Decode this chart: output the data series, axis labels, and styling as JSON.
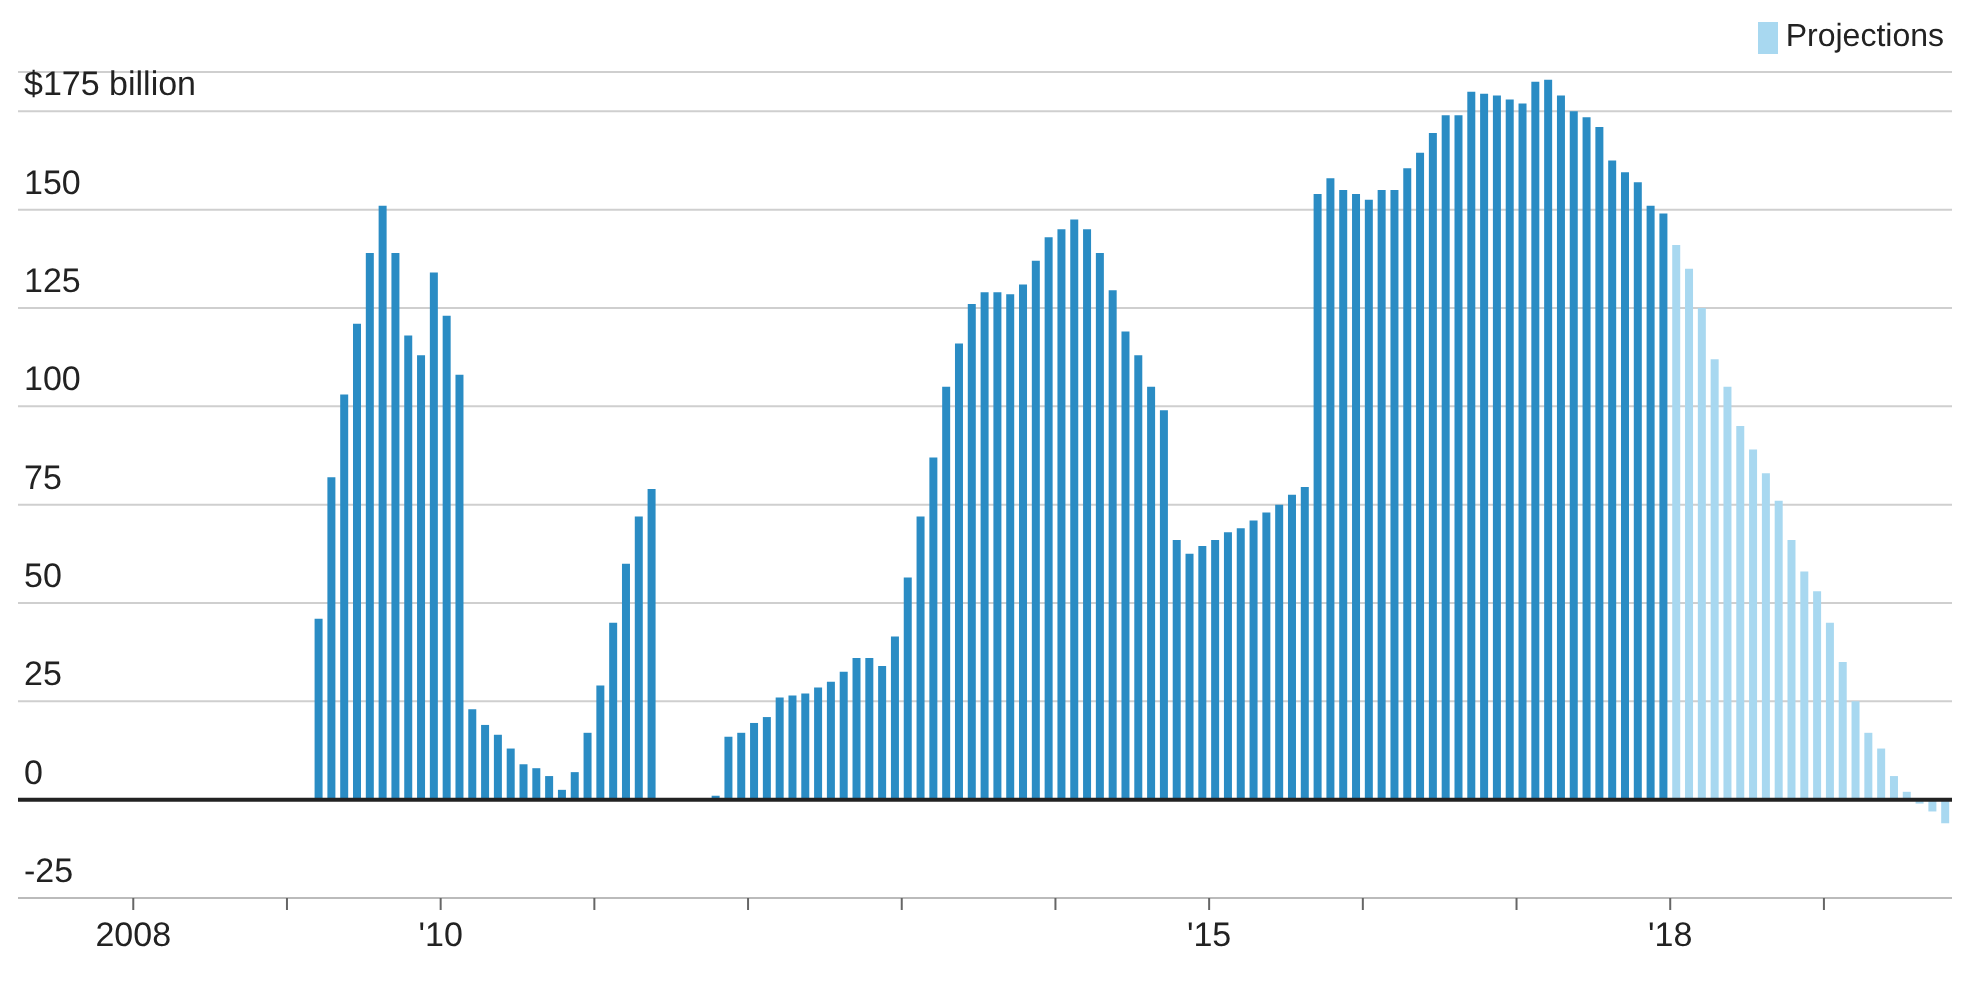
{
  "chart_data": {
    "type": "bar",
    "series": [
      {
        "color": "#2a8cc4",
        "x": [
          "2009-03",
          "2009-04",
          "2009-05",
          "2009-06",
          "2009-07",
          "2009-08",
          "2009-09",
          "2009-10",
          "2009-11",
          "2009-12",
          "2010-01",
          "2010-02",
          "2010-03",
          "2010-04",
          "2010-05",
          "2010-06",
          "2010-07",
          "2010-08",
          "2010-09",
          "2010-10",
          "2010-11",
          "2010-12",
          "2011-01",
          "2011-02",
          "2011-03",
          "2011-04",
          "2011-05",
          "2011-06",
          "2011-07",
          "2011-08",
          "2011-09",
          "2011-10",
          "2011-11",
          "2011-12",
          "2012-01",
          "2012-02",
          "2012-03",
          "2012-04",
          "2012-05",
          "2012-06",
          "2012-07",
          "2012-08",
          "2012-09",
          "2012-10",
          "2012-11",
          "2012-12",
          "2013-01",
          "2013-02",
          "2013-03",
          "2013-04",
          "2013-05",
          "2013-06",
          "2013-07",
          "2013-08",
          "2013-09",
          "2013-10",
          "2013-11",
          "2013-12",
          "2014-01",
          "2014-02",
          "2014-03",
          "2014-04",
          "2014-05",
          "2014-06",
          "2014-07",
          "2014-08",
          "2014-09",
          "2014-10",
          "2014-11",
          "2014-12",
          "2015-01",
          "2015-02",
          "2015-03",
          "2015-04",
          "2015-05",
          "2015-06",
          "2015-07",
          "2015-08",
          "2015-09",
          "2015-10",
          "2015-11",
          "2015-12",
          "2016-01",
          "2016-02",
          "2016-03",
          "2016-04",
          "2016-05",
          "2016-06",
          "2016-07",
          "2016-08",
          "2016-09",
          "2016-10",
          "2016-11",
          "2016-12",
          "2017-01",
          "2017-02",
          "2017-03",
          "2017-04",
          "2017-05",
          "2017-06",
          "2017-07",
          "2017-08",
          "2017-09",
          "2017-10",
          "2017-11",
          "2017-12"
        ],
        "values": [
          46,
          82,
          103,
          121,
          139,
          151,
          139,
          118,
          113,
          134,
          123,
          108,
          23,
          19,
          16.5,
          13,
          9,
          8,
          6,
          2.5,
          7,
          17,
          29,
          45,
          60,
          72,
          79,
          null,
          null,
          null,
          null,
          1,
          16,
          17,
          19.5,
          21,
          26,
          26.5,
          27,
          28.5,
          30,
          32.5,
          36,
          36,
          34,
          41.5,
          56.5,
          72,
          87,
          105,
          116,
          126,
          129,
          129,
          128.5,
          131,
          137,
          143,
          145,
          147.5,
          145,
          139,
          129.5,
          119,
          113,
          105,
          99,
          66,
          62.5,
          64.5,
          66,
          68,
          69,
          71,
          73,
          75,
          77.5,
          79.5,
          154,
          158,
          155,
          154,
          152.5,
          155,
          155,
          160.5,
          164.5,
          169.5,
          174,
          174,
          180,
          179.5,
          179,
          178,
          177,
          182.5,
          183,
          179,
          175,
          173.5,
          171,
          162.5,
          159.5,
          157,
          151,
          149
        ]
      },
      {
        "name": "Projections",
        "color": "#a8d8f0",
        "x": [
          "2018-01",
          "2018-02",
          "2018-03",
          "2018-04",
          "2018-05",
          "2018-06",
          "2018-07",
          "2018-08",
          "2018-09",
          "2018-10",
          "2018-11",
          "2018-12",
          "2019-01",
          "2019-02",
          "2019-03",
          "2019-04",
          "2019-05",
          "2019-06",
          "2019-07",
          "2019-08",
          "2019-09",
          "2019-10"
        ],
        "values": [
          141,
          135,
          125,
          112,
          105,
          95,
          89,
          83,
          76,
          66,
          58,
          53,
          45,
          35,
          25,
          17,
          13,
          6,
          2,
          -1,
          -3,
          -6
        ]
      }
    ],
    "xlim": [
      "2007-04",
      "2019-11"
    ],
    "xticks": [
      {
        "value": "2008",
        "label": "2008"
      },
      {
        "value": "2009",
        "label": null
      },
      {
        "value": "2010",
        "label": "'10"
      },
      {
        "value": "2011",
        "label": null
      },
      {
        "value": "2012",
        "label": null
      },
      {
        "value": "2013",
        "label": null
      },
      {
        "value": "2014",
        "label": null
      },
      {
        "value": "2015",
        "label": "'15"
      },
      {
        "value": "2016",
        "label": null
      },
      {
        "value": "2017",
        "label": null
      },
      {
        "value": "2018",
        "label": "'18"
      },
      {
        "value": "2019",
        "label": null
      }
    ],
    "ylim": [
      -25,
      185
    ],
    "yticks": [
      -25,
      0,
      25,
      50,
      75,
      100,
      125,
      {
        "value": 150,
        "label": "150"
      },
      {
        "value": 175,
        "label": "$175 billion"
      }
    ],
    "ref_lines": [
      {
        "axis": "y",
        "value": 0,
        "color": "#222222"
      }
    ],
    "grid": "y",
    "legend": "top right"
  }
}
